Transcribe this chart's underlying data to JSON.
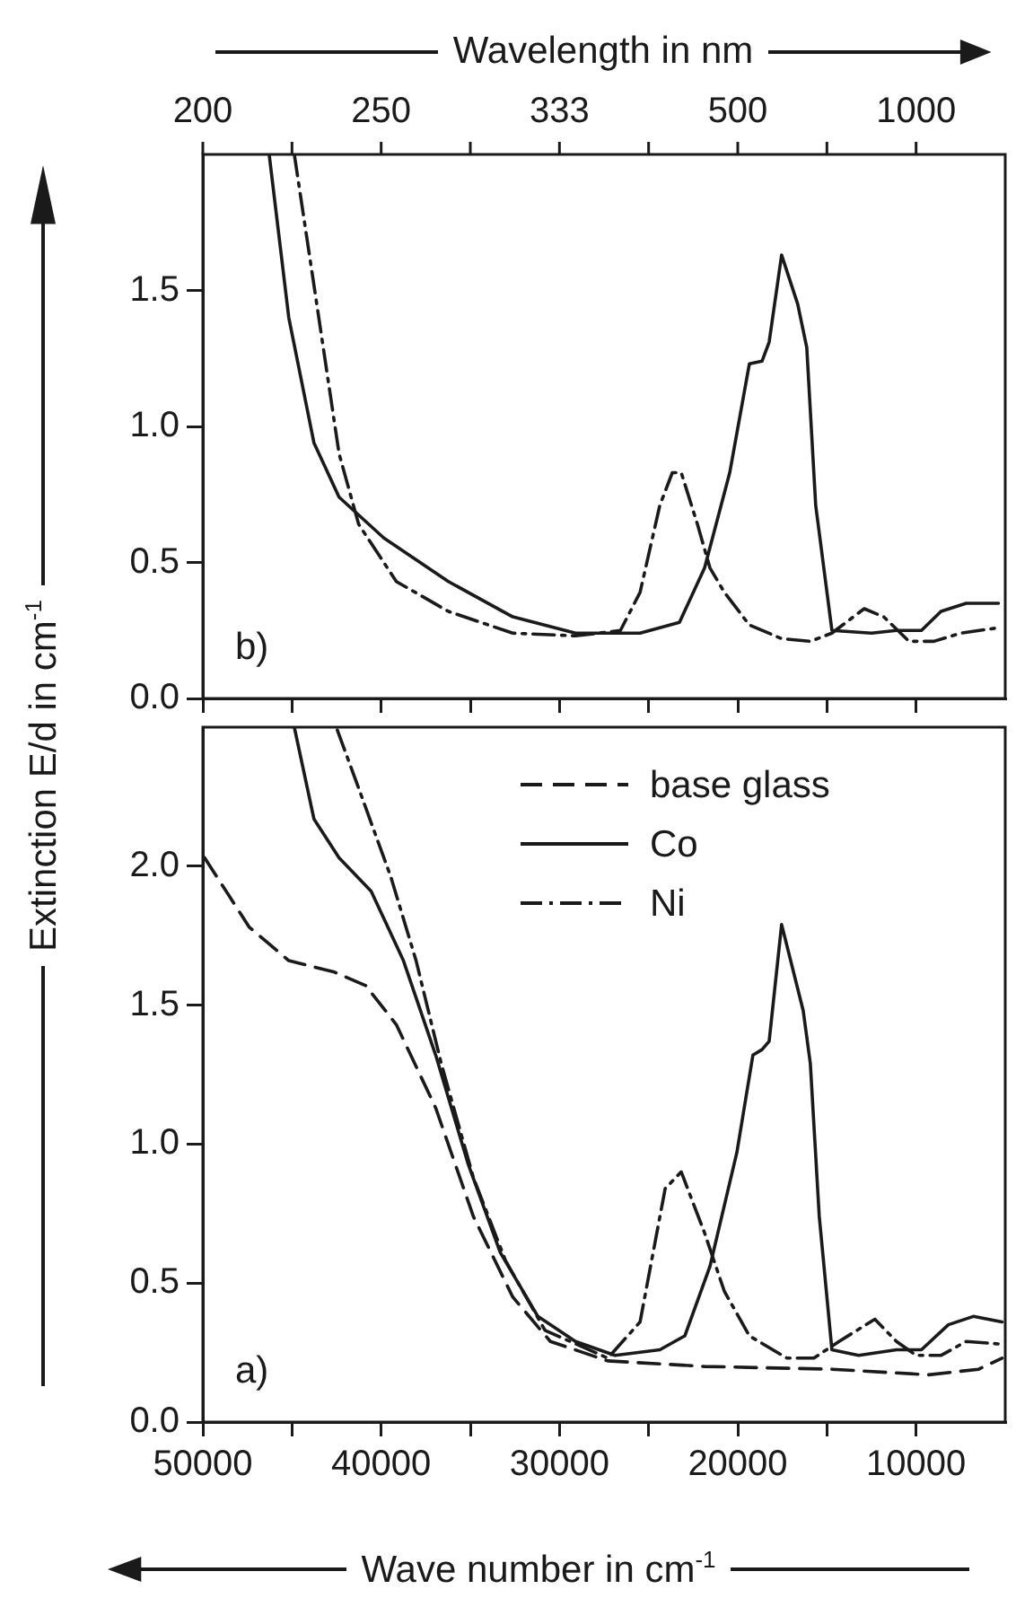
{
  "chart_data": [
    {
      "type": "line",
      "x2label": "Wavelength in nm",
      "marker": "none",
      "tick_labels": "y",
      "annotations": [
        "b)",
        "200",
        "250",
        "333",
        "500",
        "1000"
      ],
      "xlim": [
        50000,
        5000
      ],
      "xticks": [
        50000,
        45000,
        40000,
        35000,
        30000,
        25000,
        20000,
        15000,
        10000
      ],
      "ylim": [
        0,
        2.0
      ],
      "yticks": [
        {
          "value": 0,
          "label": "0.0"
        },
        {
          "value": 0.5,
          "label": "0.5"
        },
        {
          "value": 1,
          "label": "1.0"
        },
        {
          "value": 1.5,
          "label": "1.5"
        }
      ],
      "series": [
        {
          "color": "#1a1a1a",
          "line_style": "solid",
          "x": [
            46280,
            45180,
            43770,
            42360,
            39850,
            36230,
            32620,
            29100,
            25480,
            23270,
            21860,
            20450,
            19350,
            18640,
            18240,
            17540,
            16640,
            16130,
            15630,
            14720,
            12500,
            11100,
            9700,
            8600,
            7190,
            5380
          ],
          "values": [
            2.0,
            1.4,
            0.94,
            0.74,
            0.59,
            0.43,
            0.3,
            0.24,
            0.24,
            0.28,
            0.48,
            0.83,
            1.23,
            1.24,
            1.31,
            1.63,
            1.45,
            1.29,
            0.71,
            0.25,
            0.24,
            0.25,
            0.25,
            0.32,
            0.35,
            0.35
          ]
        },
        {
          "color": "#1a1a1a",
          "line_style": "dashdot",
          "x": [
            44870,
            43770,
            42360,
            41260,
            39150,
            36230,
            32620,
            29100,
            26580,
            25480,
            24370,
            23670,
            23170,
            22260,
            21560,
            20750,
            19350,
            17540,
            15930,
            14720,
            12910,
            11810,
            10400,
            9000,
            7490,
            5380
          ],
          "values": [
            2.0,
            1.52,
            0.9,
            0.64,
            0.43,
            0.32,
            0.24,
            0.23,
            0.25,
            0.39,
            0.71,
            0.83,
            0.83,
            0.64,
            0.48,
            0.39,
            0.27,
            0.22,
            0.21,
            0.24,
            0.33,
            0.3,
            0.21,
            0.21,
            0.24,
            0.26
          ]
        }
      ]
    },
    {
      "type": "line",
      "xlabel": "Wave number  in cm$^{-1}$",
      "ylabel": "Extinction E/d in cm$^{-1}$",
      "annotations": [
        "a)"
      ],
      "marker": "none",
      "legend": "top right",
      "xlim": [
        50000,
        5000
      ],
      "xticks": [
        50000,
        {
          "value": 45000,
          "label": null
        },
        40000,
        {
          "value": 35000,
          "label": null
        },
        30000,
        {
          "value": 25000,
          "label": null
        },
        20000,
        {
          "value": 15000,
          "label": null
        },
        10000
      ],
      "ylim": [
        0,
        2.5
      ],
      "yticks": [
        {
          "value": 0,
          "label": "0.0"
        },
        {
          "value": 0.5,
          "label": "0.5"
        },
        {
          "value": 1,
          "label": "1.0"
        },
        {
          "value": 1.5,
          "label": "1.5"
        },
        {
          "value": 2,
          "label": "2.0"
        }
      ],
      "series": [
        {
          "name": "base glass",
          "color": "#1a1a1a",
          "line_style": "dashed",
          "x": [
            49900,
            47390,
            45180,
            42670,
            40860,
            39150,
            36940,
            34830,
            32620,
            30510,
            27290,
            21860,
            14720,
            9300,
            6490,
            5180
          ],
          "values": [
            2.03,
            1.78,
            1.66,
            1.62,
            1.57,
            1.43,
            1.13,
            0.74,
            0.45,
            0.29,
            0.22,
            0.2,
            0.19,
            0.17,
            0.19,
            0.23
          ]
        },
        {
          "name": "Co",
          "color": "#1a1a1a",
          "line_style": "solid",
          "x": [
            44870,
            43770,
            42360,
            40560,
            38750,
            36940,
            35130,
            33320,
            31210,
            29100,
            26880,
            24370,
            22970,
            21560,
            20050,
            19150,
            18640,
            18240,
            17540,
            16330,
            15930,
            15430,
            14720,
            13220,
            11100,
            9700,
            8190,
            6790,
            5180
          ],
          "values": [
            2.5,
            2.17,
            2.03,
            1.91,
            1.66,
            1.32,
            0.93,
            0.61,
            0.38,
            0.29,
            0.24,
            0.26,
            0.31,
            0.56,
            0.97,
            1.32,
            1.34,
            1.37,
            1.79,
            1.48,
            1.29,
            0.74,
            0.26,
            0.24,
            0.26,
            0.26,
            0.35,
            0.38,
            0.36
          ]
        },
        {
          "name": "Ni",
          "color": "#1a1a1a",
          "line_style": "dashdot",
          "x": [
            42460,
            41260,
            39450,
            38040,
            36630,
            34830,
            33020,
            30810,
            27290,
            25480,
            24070,
            23170,
            21860,
            20750,
            19350,
            17240,
            15730,
            14320,
            12310,
            11100,
            10000,
            8590,
            7190,
            5180
          ],
          "values": [
            2.49,
            2.28,
            1.96,
            1.66,
            1.29,
            0.88,
            0.58,
            0.33,
            0.23,
            0.36,
            0.84,
            0.9,
            0.68,
            0.47,
            0.31,
            0.23,
            0.23,
            0.29,
            0.37,
            0.29,
            0.24,
            0.24,
            0.29,
            0.28
          ]
        }
      ]
    }
  ]
}
